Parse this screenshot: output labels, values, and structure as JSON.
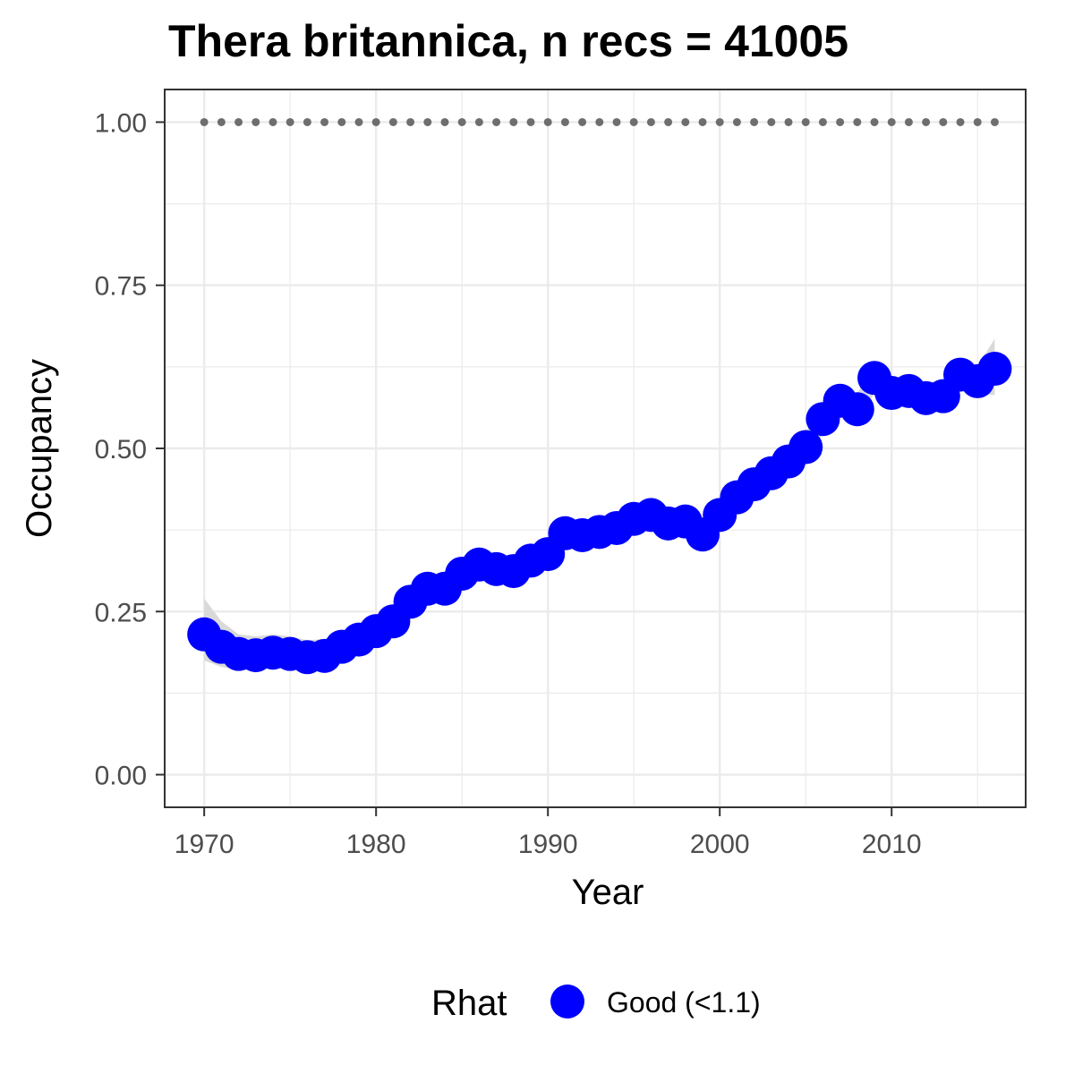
{
  "chart_data": {
    "type": "scatter",
    "title": "Thera britannica, n recs = 41005",
    "xlabel": "Year",
    "ylabel": "Occupancy",
    "xlim": [
      1967.7,
      2017.8
    ],
    "ylim": [
      -0.05,
      1.05
    ],
    "x_ticks": [
      1970,
      1980,
      1990,
      2000,
      2010
    ],
    "y_ticks": [
      0.0,
      0.25,
      0.5,
      0.75,
      1.0
    ],
    "x_tick_labels": [
      "1970",
      "1980",
      "1990",
      "2000",
      "2010"
    ],
    "y_tick_labels": [
      "0.00",
      "0.25",
      "0.50",
      "0.75",
      "1.00"
    ],
    "grid": true,
    "legend": {
      "position": "bottom",
      "title": "Rhat",
      "entries": [
        {
          "label": "Good (<1.1)",
          "color": "#0000ff"
        }
      ]
    },
    "colors": {
      "points": "#0000ff",
      "ribbon": "#d9d9d9",
      "reference": "#6e6e6e",
      "grid": "#ebebeb",
      "panel_border": "#333333"
    },
    "reference_series": {
      "name": "",
      "x": [
        1970,
        1971,
        1972,
        1973,
        1974,
        1975,
        1976,
        1977,
        1978,
        1979,
        1980,
        1981,
        1982,
        1983,
        1984,
        1985,
        1986,
        1987,
        1988,
        1989,
        1990,
        1991,
        1992,
        1993,
        1994,
        1995,
        1996,
        1997,
        1998,
        1999,
        2000,
        2001,
        2002,
        2003,
        2004,
        2005,
        2006,
        2007,
        2008,
        2009,
        2010,
        2011,
        2012,
        2013,
        2014,
        2015,
        2016
      ],
      "y": [
        1,
        1,
        1,
        1,
        1,
        1,
        1,
        1,
        1,
        1,
        1,
        1,
        1,
        1,
        1,
        1,
        1,
        1,
        1,
        1,
        1,
        1,
        1,
        1,
        1,
        1,
        1,
        1,
        1,
        1,
        1,
        1,
        1,
        1,
        1,
        1,
        1,
        1,
        1,
        1,
        1,
        1,
        1,
        1,
        1,
        1,
        1
      ]
    },
    "series": [
      {
        "name": "Good (<1.1)",
        "x": [
          1970,
          1971,
          1972,
          1973,
          1974,
          1975,
          1976,
          1977,
          1978,
          1979,
          1980,
          1981,
          1982,
          1983,
          1984,
          1985,
          1986,
          1987,
          1988,
          1989,
          1990,
          1991,
          1992,
          1993,
          1994,
          1995,
          1996,
          1997,
          1998,
          1999,
          2000,
          2001,
          2002,
          2003,
          2004,
          2005,
          2006,
          2007,
          2008,
          2009,
          2010,
          2011,
          2012,
          2013,
          2014,
          2015,
          2016
        ],
        "y": [
          0.215,
          0.196,
          0.185,
          0.183,
          0.187,
          0.185,
          0.18,
          0.182,
          0.196,
          0.207,
          0.22,
          0.235,
          0.265,
          0.285,
          0.285,
          0.308,
          0.322,
          0.315,
          0.312,
          0.328,
          0.338,
          0.37,
          0.367,
          0.372,
          0.378,
          0.392,
          0.398,
          0.385,
          0.388,
          0.368,
          0.398,
          0.425,
          0.445,
          0.462,
          0.48,
          0.502,
          0.545,
          0.573,
          0.56,
          0.608,
          0.585,
          0.588,
          0.577,
          0.58,
          0.613,
          0.603,
          0.622
        ],
        "lower": [
          0.175,
          0.165,
          0.16,
          0.16,
          0.163,
          0.162,
          0.158,
          0.16,
          0.172,
          0.183,
          0.197,
          0.214,
          0.244,
          0.264,
          0.265,
          0.288,
          0.3,
          0.296,
          0.294,
          0.308,
          0.318,
          0.35,
          0.347,
          0.353,
          0.359,
          0.373,
          0.378,
          0.366,
          0.369,
          0.35,
          0.379,
          0.405,
          0.425,
          0.442,
          0.46,
          0.482,
          0.522,
          0.55,
          0.538,
          0.585,
          0.565,
          0.568,
          0.557,
          0.56,
          0.59,
          0.582,
          0.582
        ],
        "upper": [
          0.27,
          0.235,
          0.215,
          0.212,
          0.215,
          0.212,
          0.206,
          0.208,
          0.221,
          0.232,
          0.245,
          0.258,
          0.287,
          0.307,
          0.306,
          0.328,
          0.344,
          0.336,
          0.332,
          0.35,
          0.36,
          0.392,
          0.388,
          0.392,
          0.398,
          0.412,
          0.42,
          0.405,
          0.408,
          0.388,
          0.418,
          0.446,
          0.467,
          0.484,
          0.501,
          0.524,
          0.57,
          0.598,
          0.584,
          0.632,
          0.606,
          0.609,
          0.598,
          0.602,
          0.636,
          0.626,
          0.668
        ]
      }
    ]
  }
}
